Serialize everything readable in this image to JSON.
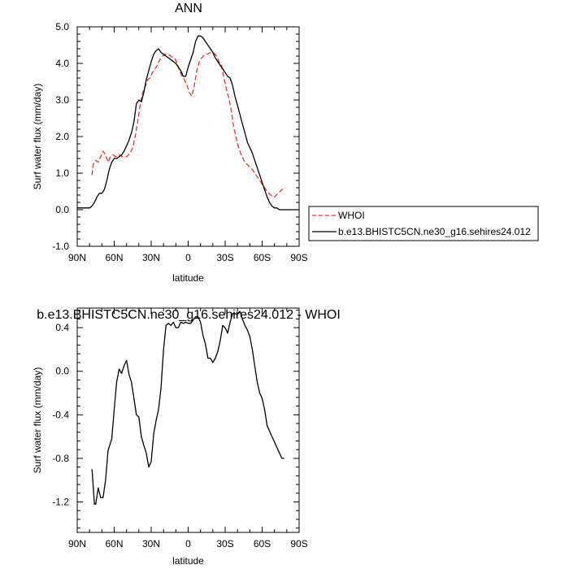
{
  "chart_data": [
    {
      "type": "line",
      "title": "ANN",
      "xlabel": "latitude",
      "ylabel": "Surf water flux (mm/day)",
      "xlim": [
        90,
        -90
      ],
      "ylim": [
        -1.0,
        5.0
      ],
      "xticks": [
        90,
        60,
        30,
        0,
        -30,
        -60,
        -90
      ],
      "xtick_labels": [
        "90N",
        "60N",
        "30N",
        "0",
        "30S",
        "60S",
        "90S"
      ],
      "yticks": [
        -1.0,
        0.0,
        1.0,
        2.0,
        3.0,
        4.0,
        5.0
      ],
      "ytick_labels": [
        "-1.0",
        "0.0",
        "1.0",
        "2.0",
        "3.0",
        "4.0",
        "5.0"
      ],
      "grid": false,
      "legend_position": "right",
      "series": [
        {
          "name": "WHOI",
          "color": "#e8322a",
          "dash": "dashed",
          "x": [
            78,
            77,
            75,
            73,
            71,
            69,
            67,
            65,
            63,
            61,
            59,
            56,
            53,
            50,
            47,
            45,
            43,
            41,
            39,
            37,
            35,
            33,
            31,
            29,
            27,
            25,
            23,
            21,
            19,
            17,
            15,
            13,
            11,
            9,
            7,
            5,
            3,
            1,
            -1,
            -3,
            -5,
            -7,
            -9,
            -11,
            -13,
            -15,
            -17,
            -19,
            -21,
            -23,
            -25,
            -27,
            -29,
            -31,
            -33,
            -35,
            -37,
            -40,
            -43,
            -46,
            -49,
            -52,
            -55,
            -58,
            -61,
            -64,
            -67,
            -70,
            -73,
            -76,
            -79
          ],
          "y": [
            0.95,
            1.25,
            1.35,
            1.3,
            1.45,
            1.6,
            1.5,
            1.3,
            1.45,
            1.5,
            1.45,
            1.5,
            1.45,
            1.45,
            1.55,
            1.7,
            2.0,
            2.4,
            2.85,
            3.2,
            3.35,
            3.55,
            3.6,
            3.75,
            3.85,
            3.95,
            4.1,
            4.2,
            4.25,
            4.25,
            4.22,
            4.18,
            4.15,
            4.0,
            3.8,
            3.65,
            3.55,
            3.4,
            3.2,
            3.1,
            3.4,
            3.8,
            4.05,
            4.15,
            4.22,
            4.25,
            4.28,
            4.3,
            4.28,
            4.2,
            4.05,
            3.95,
            3.6,
            3.3,
            3.05,
            2.7,
            2.25,
            1.8,
            1.5,
            1.3,
            1.2,
            1.1,
            0.95,
            0.8,
            0.65,
            0.5,
            0.4,
            0.35,
            0.45,
            0.55,
            0.6
          ]
        },
        {
          "name": "b.e13.BHISTC5CN.ne30_g16.sehires24.012",
          "color": "#000000",
          "dash": "solid",
          "x": [
            90,
            86,
            82,
            80,
            78,
            76,
            74,
            72,
            70,
            68,
            66,
            64,
            62,
            60,
            58,
            56,
            54,
            52,
            50,
            48,
            46,
            44,
            42,
            40,
            38,
            36,
            34,
            32,
            30,
            28,
            26,
            24,
            22,
            20,
            18,
            16,
            14,
            12,
            10,
            8,
            6,
            4,
            2,
            0,
            -2,
            -4,
            -6,
            -8,
            -10,
            -12,
            -14,
            -16,
            -18,
            -20,
            -22,
            -24,
            -26,
            -28,
            -30,
            -32,
            -34,
            -36,
            -38,
            -40,
            -42,
            -44,
            -46,
            -48,
            -50,
            -52,
            -54,
            -56,
            -58,
            -60,
            -62,
            -64,
            -66,
            -68,
            -70,
            -72,
            -74,
            -76,
            -78,
            -80,
            -84,
            -88,
            -90
          ],
          "y": [
            0.05,
            0.05,
            0.05,
            0.05,
            0.1,
            0.2,
            0.35,
            0.45,
            0.45,
            0.55,
            0.8,
            1.1,
            1.3,
            1.4,
            1.4,
            1.45,
            1.5,
            1.6,
            1.75,
            1.9,
            2.1,
            2.4,
            2.9,
            3.0,
            2.95,
            3.2,
            3.55,
            3.8,
            4.05,
            4.25,
            4.35,
            4.4,
            4.3,
            4.25,
            4.2,
            4.15,
            4.1,
            4.05,
            4.0,
            3.9,
            3.8,
            3.65,
            3.65,
            3.9,
            4.1,
            4.3,
            4.6,
            4.75,
            4.75,
            4.7,
            4.6,
            4.5,
            4.4,
            4.3,
            4.15,
            4.05,
            3.95,
            3.85,
            3.75,
            3.65,
            3.6,
            3.4,
            3.1,
            2.85,
            2.6,
            2.35,
            2.1,
            1.85,
            1.7,
            1.55,
            1.35,
            1.15,
            0.95,
            0.75,
            0.55,
            0.35,
            0.2,
            0.1,
            0.05,
            0.05,
            0.0,
            0.0,
            0.0,
            0.0,
            0.0,
            0.0,
            0.0
          ]
        }
      ]
    },
    {
      "type": "line",
      "title": "b.e13.BHISTC5CN.ne30_g16.sehires24.012 - WHOI",
      "xlabel": "latitude",
      "ylabel": "Surf water flux (mm/day)",
      "xlim": [
        90,
        -90
      ],
      "ylim": [
        -1.48,
        0.58
      ],
      "xticks": [
        90,
        60,
        30,
        0,
        -30,
        -60,
        -90
      ],
      "xtick_labels": [
        "90N",
        "60N",
        "30N",
        "0",
        "30S",
        "60S",
        "90S"
      ],
      "yticks": [
        -1.2,
        -0.8,
        -0.4,
        0.0,
        0.4
      ],
      "ytick_labels": [
        "-1.2",
        "-0.8",
        "-0.4",
        "0.0",
        "0.4"
      ],
      "grid": false,
      "series": [
        {
          "color": "#000000",
          "dash": "solid",
          "x": [
            78,
            76,
            75,
            73,
            71,
            69,
            67,
            65,
            62,
            60,
            58,
            56,
            54,
            52,
            50,
            48,
            46,
            44,
            42,
            40,
            38,
            36,
            34,
            32,
            30,
            28,
            26,
            24,
            22,
            20,
            18,
            16,
            14,
            12,
            10,
            8,
            6,
            4,
            2,
            0,
            -2,
            -4,
            -6,
            -8,
            -10,
            -12,
            -14,
            -16,
            -18,
            -20,
            -22,
            -24,
            -26,
            -28,
            -30,
            -32,
            -34,
            -36,
            -38,
            -40,
            -42,
            -44,
            -46,
            -48,
            -50,
            -52,
            -54,
            -56,
            -58,
            -60,
            -62,
            -64,
            -66,
            -68,
            -70,
            -72,
            -74,
            -76,
            -78
          ],
          "y": [
            -0.9,
            -1.22,
            -1.22,
            -1.07,
            -1.16,
            -1.16,
            -1.0,
            -0.73,
            -0.62,
            -0.35,
            -0.1,
            0.02,
            -0.02,
            0.05,
            0.1,
            -0.03,
            -0.1,
            -0.25,
            -0.4,
            -0.42,
            -0.6,
            -0.68,
            -0.75,
            -0.88,
            -0.83,
            -0.58,
            -0.45,
            -0.35,
            -0.15,
            0.2,
            0.42,
            0.44,
            0.42,
            0.45,
            0.4,
            0.4,
            0.45,
            0.44,
            0.45,
            0.44,
            0.44,
            0.47,
            0.5,
            0.5,
            0.45,
            0.33,
            0.25,
            0.12,
            0.12,
            0.08,
            0.12,
            0.18,
            0.28,
            0.42,
            0.4,
            0.35,
            0.45,
            0.53,
            0.53,
            0.52,
            0.55,
            0.48,
            0.42,
            0.38,
            0.32,
            0.2,
            0.05,
            -0.1,
            -0.2,
            -0.25,
            -0.35,
            -0.5,
            -0.55,
            -0.6,
            -0.65,
            -0.7,
            -0.75,
            -0.8,
            -0.8
          ]
        }
      ]
    }
  ]
}
